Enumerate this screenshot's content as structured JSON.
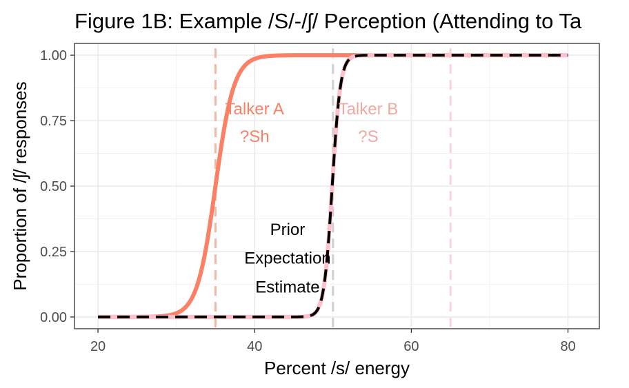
{
  "chart_data": {
    "type": "line",
    "title": "Figure 1B: Example /S/-/ʃ/ Perception (Attending to Ta",
    "xlabel": "Percent /s/ energy",
    "ylabel": "Proportion of /ʃ/ responses",
    "xlim": [
      17,
      84
    ],
    "ylim": [
      -0.045,
      1.045
    ],
    "x_ticks": [
      20,
      40,
      60,
      80
    ],
    "x_tick_labels": [
      "20",
      "40",
      "60",
      "80"
    ],
    "y_ticks": [
      0,
      0.25,
      0.5,
      0.75,
      1
    ],
    "y_tick_labels": [
      "0.00",
      "0.25",
      "0.50",
      "0.75",
      "1.00"
    ],
    "grid": true,
    "series": [
      {
        "color": "#FA8066",
        "style": "solid",
        "width": 6,
        "midpoint": 35,
        "slope": 0.85
      },
      {
        "color": "#FFC0CB",
        "style": "solid",
        "width": 6,
        "midpoint": 49.9,
        "slope": 1.9
      },
      {
        "color": "#000000",
        "style": "dashed",
        "width": 4,
        "midpoint": 49.9,
        "slope": 1.9
      }
    ],
    "vlines": [
      {
        "x": 35,
        "color": "#F4B7A5"
      },
      {
        "x": 50,
        "color": "#CFCFCF"
      },
      {
        "x": 65,
        "color": "#FBD3DA"
      }
    ],
    "annotations": [
      {
        "text": "Talker A",
        "x": 40,
        "y": 0.79,
        "color": "#FA8066"
      },
      {
        "text": "?Sh",
        "x": 40,
        "y": 0.685,
        "color": "#FA8066"
      },
      {
        "text": "Talker B",
        "x": 54.5,
        "y": 0.79,
        "color": "#F0A9A2"
      },
      {
        "text": "?S",
        "x": 54.5,
        "y": 0.685,
        "color": "#F0A9A2"
      },
      {
        "text": "Prior",
        "x": 44.2,
        "y": 0.33,
        "color": "#000000"
      },
      {
        "text": "Expectation",
        "x": 44.2,
        "y": 0.22,
        "color": "#000000"
      },
      {
        "text": "Estimate",
        "x": 44.2,
        "y": 0.11,
        "color": "#000000"
      }
    ]
  }
}
